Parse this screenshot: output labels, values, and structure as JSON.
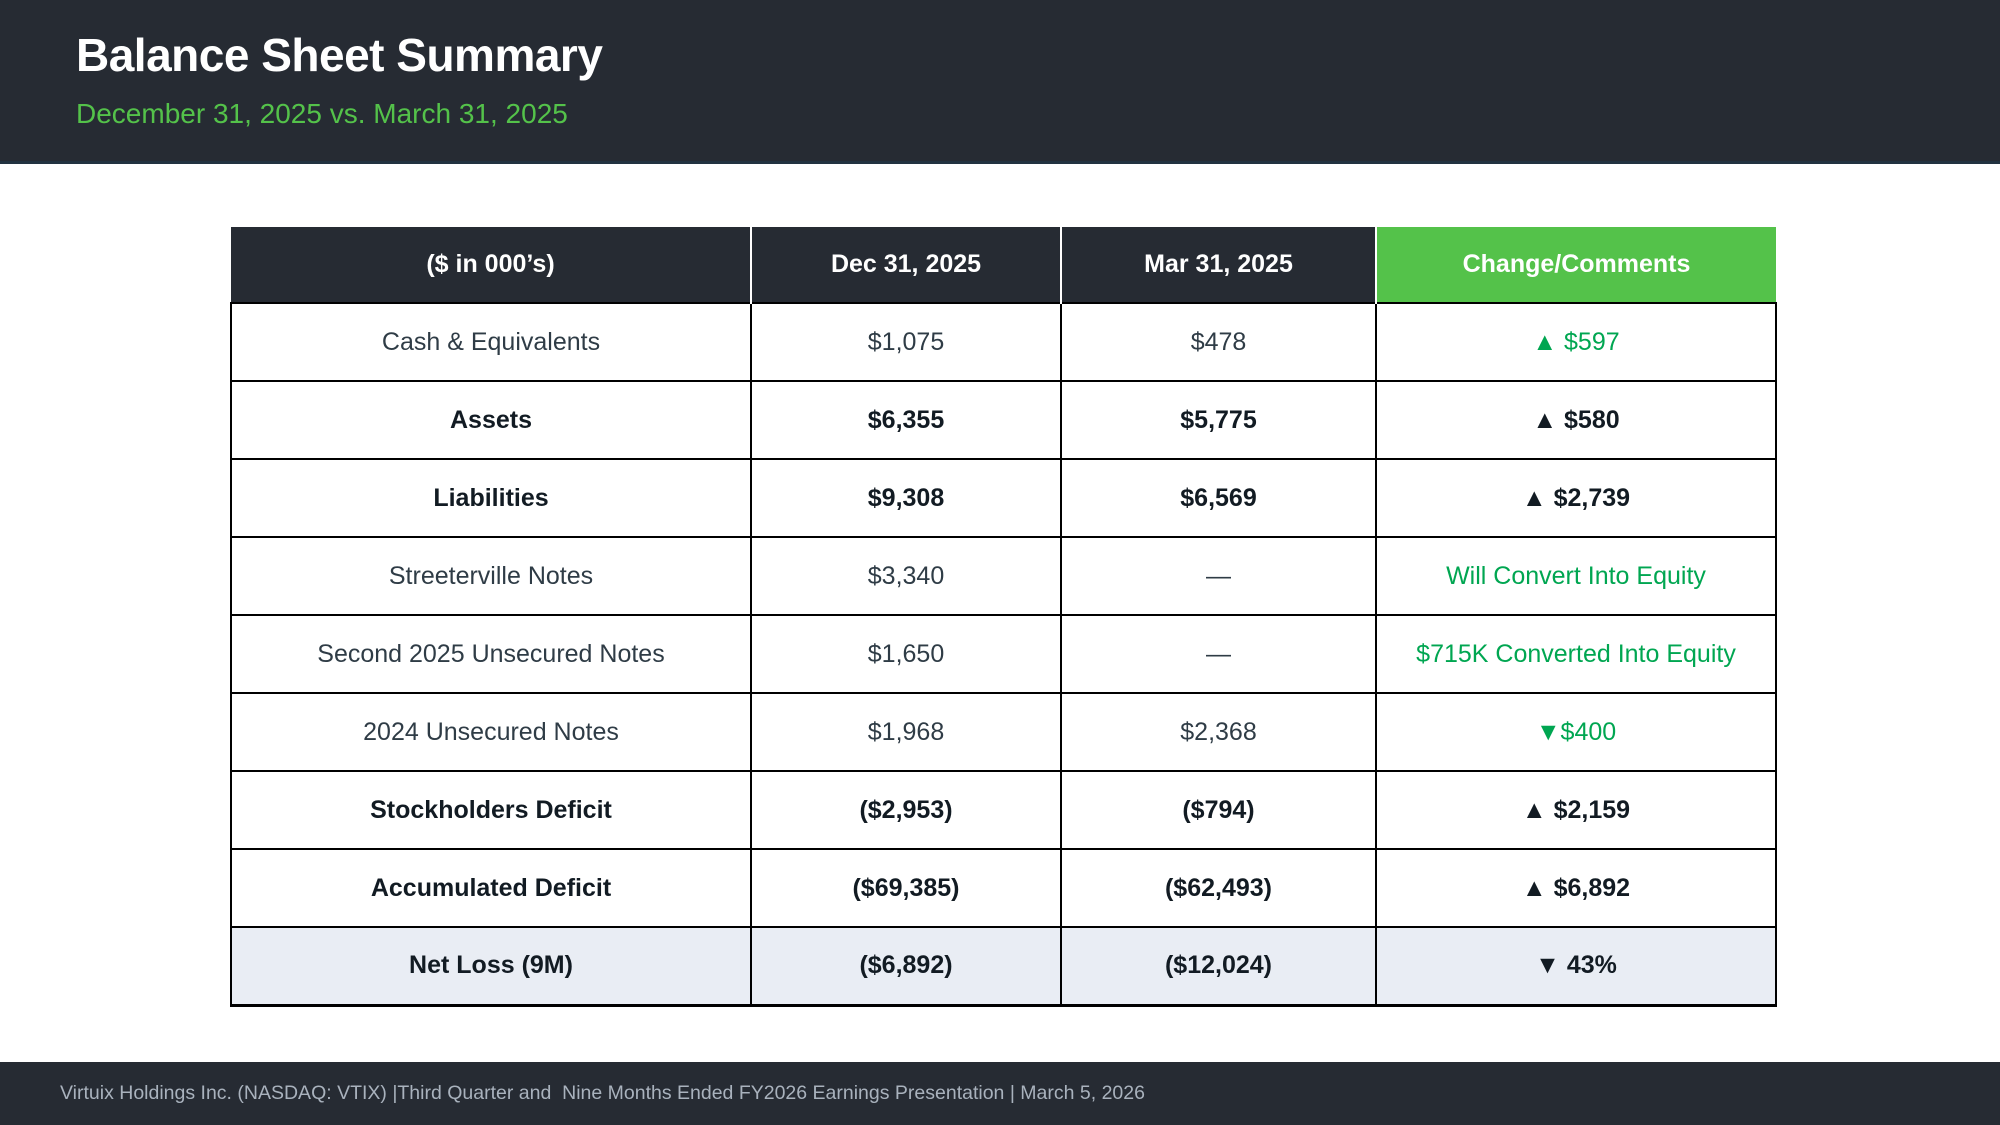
{
  "slide": {
    "title": "Balance Sheet Summary",
    "subtitle": "December 31, 2025 vs. March 31, 2025"
  },
  "colors": {
    "top_bar_bg": "#262B33",
    "accent_green": "#54C24A",
    "change_green": "#00A651",
    "change_red": "#B10E15",
    "highlight_row_bg": "#E9EDF4"
  },
  "table": {
    "columns": [
      "($ in 000’s)",
      "Dec 31, 2025",
      "Mar 31, 2025",
      "Change/Comments"
    ],
    "rows": [
      {
        "label": "Cash & Equivalents",
        "dec": "$1,075",
        "mar": "$478",
        "change": "▲ $597",
        "change_color": "green",
        "bold": false,
        "highlight": false
      },
      {
        "label": "Assets",
        "dec": "$6,355",
        "mar": "$5,775",
        "change": "▲ $580",
        "change_color": "green",
        "bold": true,
        "highlight": false
      },
      {
        "label": "Liabilities",
        "dec": "$9,308",
        "mar": "$6,569",
        "change": "▲ $2,739",
        "change_color": "red",
        "bold": true,
        "highlight": false
      },
      {
        "label": "Streeterville Notes",
        "dec": "$3,340",
        "mar": "—",
        "change": "Will Convert Into Equity",
        "change_color": "green",
        "bold": false,
        "highlight": false
      },
      {
        "label": "Second 2025 Unsecured Notes",
        "dec": "$1,650",
        "mar": "—",
        "change": "$715K Converted Into Equity",
        "change_color": "green",
        "bold": false,
        "highlight": false
      },
      {
        "label": "2024 Unsecured Notes",
        "dec": "$1,968",
        "mar": "$2,368",
        "change": "▼$400",
        "change_color": "green",
        "bold": false,
        "highlight": false
      },
      {
        "label": "Stockholders Deficit",
        "dec": "($2,953)",
        "mar": "($794)",
        "change": "▲ $2,159",
        "change_color": "red",
        "bold": true,
        "highlight": false
      },
      {
        "label": "Accumulated Deficit",
        "dec": "($69,385)",
        "mar": "($62,493)",
        "change": "▲ $6,892",
        "change_color": "red",
        "bold": true,
        "highlight": false
      },
      {
        "label": "Net Loss (9M)",
        "dec": "($6,892)",
        "mar": "($12,024)",
        "change": "▼ 43%",
        "change_color": "green",
        "bold": true,
        "highlight": true
      }
    ]
  },
  "footer": {
    "text": "Virtuix Holdings Inc. (NASDAQ: VTIX) |Third Quarter and  Nine Months Ended FY2026 Earnings Presentation | March 5, 2026"
  }
}
